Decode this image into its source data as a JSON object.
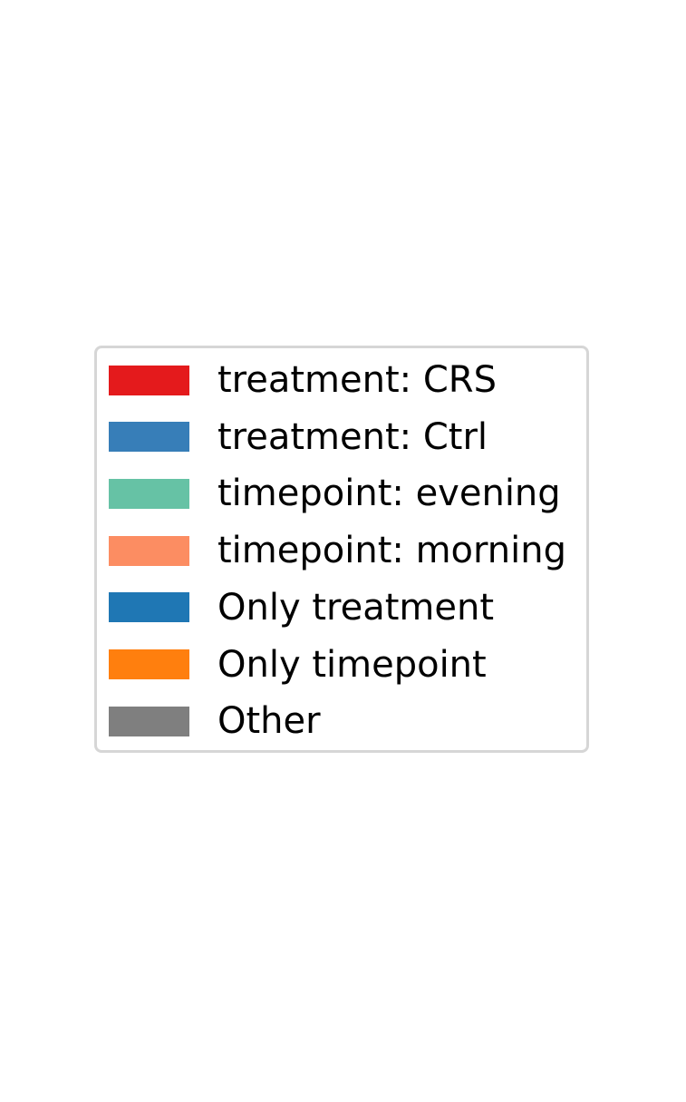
{
  "chart_data": {
    "type": "bar",
    "legend": {
      "placement": "center",
      "entries": [
        {
          "label": "treatment: CRS",
          "color": "#e41a1c"
        },
        {
          "label": "treatment: Ctrl",
          "color": "#377eb8"
        },
        {
          "label": "timepoint: evening",
          "color": "#66c2a5"
        },
        {
          "label": "timepoint: morning",
          "color": "#fc8d62"
        },
        {
          "label": "Only treatment",
          "color": "#1f77b4"
        },
        {
          "label": "Only timepoint",
          "color": "#ff7f0e"
        },
        {
          "label": "Other",
          "color": "#7f7f7f"
        }
      ]
    }
  }
}
